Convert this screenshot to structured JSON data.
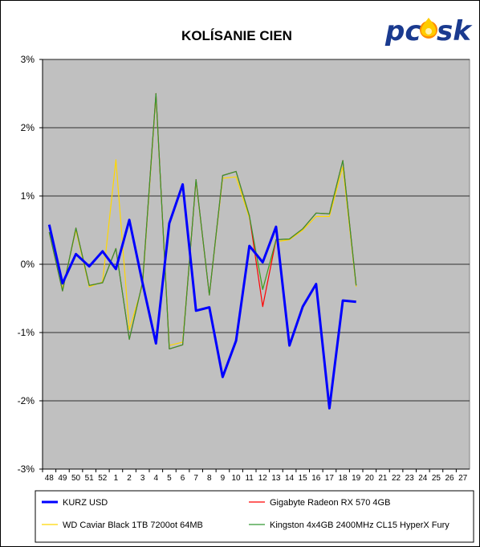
{
  "chart_data": {
    "type": "line",
    "title": "KOLÍSANIE CIEN",
    "xlabel": "",
    "ylabel": "",
    "categories": [
      "48",
      "49",
      "50",
      "51",
      "52",
      "1",
      "2",
      "3",
      "4",
      "5",
      "6",
      "7",
      "8",
      "9",
      "10",
      "11",
      "12",
      "13",
      "14",
      "15",
      "16",
      "17",
      "18",
      "19",
      "20",
      "21",
      "22",
      "23",
      "24",
      "25",
      "26",
      "27"
    ],
    "ylim": [
      -3,
      3
    ],
    "y_ticks": [
      3,
      2,
      1,
      0,
      -1,
      -2,
      -3
    ],
    "y_tick_labels": [
      "3%",
      "2%",
      "1%",
      "0%",
      "-1%",
      "-2%",
      "-3%"
    ],
    "grid": true,
    "legend_position": "bottom",
    "series": [
      {
        "name": "KURZ USD",
        "color": "#0000FF",
        "values": [
          0.58,
          -0.28,
          0.15,
          -0.03,
          0.19,
          -0.07,
          0.65,
          -0.28,
          -1.16,
          0.6,
          1.17,
          -0.68,
          -0.63,
          -1.65,
          -1.12,
          0.27,
          0.03,
          0.55,
          -1.19,
          -0.62,
          -0.29,
          -2.11,
          -0.53,
          -0.55,
          null,
          null,
          null,
          null,
          null,
          null,
          null,
          null
        ]
      },
      {
        "name": "Gigabyte Radeon RX 570 4GB",
        "color": "#FF0000",
        "values": [
          0.47,
          -0.39,
          0.53,
          -0.31,
          -0.27,
          0.23,
          -1.1,
          -0.26,
          2.5,
          -1.24,
          -1.18,
          1.24,
          -0.45,
          1.3,
          1.36,
          0.71,
          -0.62,
          0.36,
          0.37,
          0.52,
          0.75,
          0.74,
          1.52,
          -0.31,
          null,
          null,
          null,
          null,
          null,
          null,
          null,
          null
        ]
      },
      {
        "name": "WD Caviar Black 1TB 7200ot 64MB",
        "color": "#FFD700",
        "values": [
          0.47,
          -0.36,
          0.5,
          -0.33,
          -0.26,
          1.53,
          -0.96,
          -0.3,
          2.47,
          -1.19,
          -1.14,
          1.22,
          -0.45,
          1.26,
          1.28,
          0.68,
          -0.36,
          0.33,
          0.36,
          0.5,
          0.7,
          0.7,
          1.43,
          -0.33,
          null,
          null,
          null,
          null,
          null,
          null,
          null,
          null
        ]
      },
      {
        "name": "Kingston 4x4GB 2400MHz CL15 HyperX Fury",
        "color": "#339933",
        "values": [
          0.47,
          -0.39,
          0.53,
          -0.31,
          -0.27,
          0.23,
          -1.1,
          -0.26,
          2.5,
          -1.24,
          -1.18,
          1.24,
          -0.45,
          1.3,
          1.36,
          0.71,
          -0.37,
          0.36,
          0.37,
          0.52,
          0.75,
          0.74,
          1.52,
          -0.31,
          null,
          null,
          null,
          null,
          null,
          null,
          null,
          null
        ]
      }
    ]
  },
  "logo": {
    "text_pc": "pc",
    "text_sk": "sk",
    "name": "pcsk-logo"
  }
}
